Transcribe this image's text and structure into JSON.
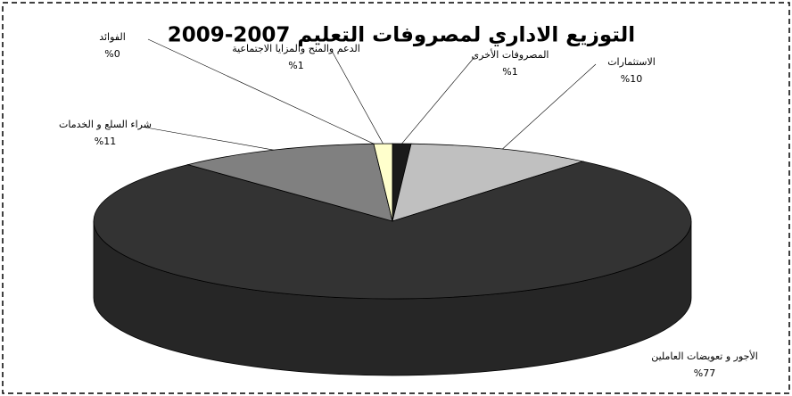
{
  "chart_data": {
    "type": "pie",
    "title": "التوزيع الاداري لمصروفات التعليم 2007-2009",
    "categories": [
      "المصروفات الأخرى",
      "الاستثمارات",
      "الأجور و تعويضات العاملين",
      "شراء السلع و الخدمات",
      "الفوائد",
      "الدعم والمنح والمزايا الاجتماعية"
    ],
    "values": [
      1,
      10,
      77,
      11,
      0,
      1
    ],
    "value_labels": [
      "%1",
      "%10",
      "%77",
      "%11",
      "%0",
      "%1"
    ],
    "colors": [
      "#1a1a1a",
      "#c0c0c0",
      "#333333",
      "#808080",
      "#ffffff",
      "#ffffcc"
    ]
  }
}
